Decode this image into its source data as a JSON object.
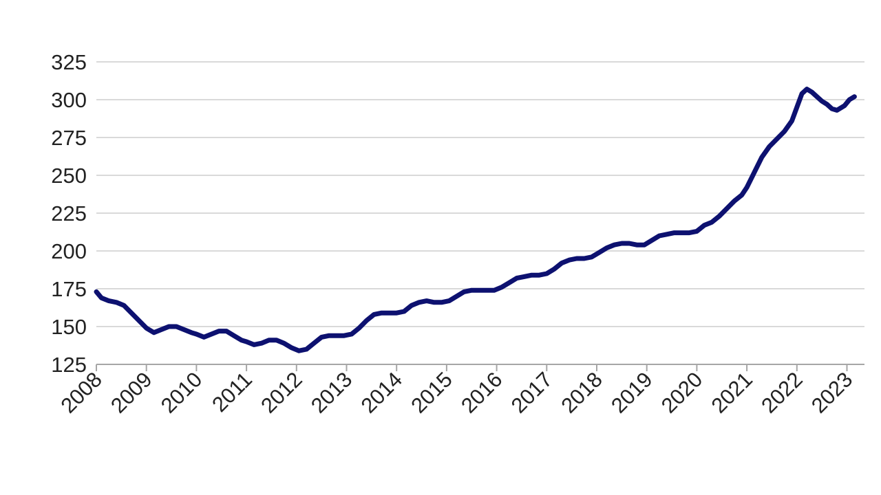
{
  "chart_data": {
    "type": "line",
    "title": "",
    "xlabel": "",
    "ylabel": "",
    "ylim": [
      125,
      325
    ],
    "yticks": [
      125,
      150,
      175,
      200,
      225,
      250,
      275,
      300,
      325
    ],
    "xlim": [
      2008,
      2023.33
    ],
    "xticks": [
      "2008",
      "2009",
      "2010",
      "2011",
      "2012",
      "2013",
      "2014",
      "2015",
      "2016",
      "2017",
      "2018",
      "2019",
      "2020",
      "2021",
      "2022",
      "2023"
    ],
    "grid": "horizontal",
    "legend": "none",
    "colors": {
      "line": "#0d1170",
      "grid": "#d9d9d9",
      "axis": "#a6a6a6"
    },
    "series": [
      {
        "values": [
          [
            2008.0,
            173
          ],
          [
            2008.1,
            169
          ],
          [
            2008.25,
            167
          ],
          [
            2008.4,
            166
          ],
          [
            2008.55,
            164
          ],
          [
            2008.7,
            159
          ],
          [
            2008.85,
            154
          ],
          [
            2009.0,
            149
          ],
          [
            2009.15,
            146
          ],
          [
            2009.3,
            148
          ],
          [
            2009.45,
            150
          ],
          [
            2009.6,
            150
          ],
          [
            2009.75,
            148
          ],
          [
            2009.9,
            146
          ],
          [
            2010.0,
            145
          ],
          [
            2010.15,
            143
          ],
          [
            2010.3,
            145
          ],
          [
            2010.45,
            147
          ],
          [
            2010.6,
            147
          ],
          [
            2010.75,
            144
          ],
          [
            2010.9,
            141
          ],
          [
            2011.0,
            140
          ],
          [
            2011.15,
            138
          ],
          [
            2011.3,
            139
          ],
          [
            2011.45,
            141
          ],
          [
            2011.6,
            141
          ],
          [
            2011.75,
            139
          ],
          [
            2011.9,
            136
          ],
          [
            2012.05,
            134
          ],
          [
            2012.2,
            135
          ],
          [
            2012.35,
            139
          ],
          [
            2012.5,
            143
          ],
          [
            2012.65,
            144
          ],
          [
            2012.8,
            144
          ],
          [
            2012.95,
            144
          ],
          [
            2013.1,
            145
          ],
          [
            2013.25,
            149
          ],
          [
            2013.4,
            154
          ],
          [
            2013.55,
            158
          ],
          [
            2013.7,
            159
          ],
          [
            2013.85,
            159
          ],
          [
            2014.0,
            159
          ],
          [
            2014.15,
            160
          ],
          [
            2014.3,
            164
          ],
          [
            2014.45,
            166
          ],
          [
            2014.6,
            167
          ],
          [
            2014.75,
            166
          ],
          [
            2014.9,
            166
          ],
          [
            2015.05,
            167
          ],
          [
            2015.2,
            170
          ],
          [
            2015.35,
            173
          ],
          [
            2015.5,
            174
          ],
          [
            2015.65,
            174
          ],
          [
            2015.8,
            174
          ],
          [
            2015.95,
            174
          ],
          [
            2016.1,
            176
          ],
          [
            2016.25,
            179
          ],
          [
            2016.4,
            182
          ],
          [
            2016.55,
            183
          ],
          [
            2016.7,
            184
          ],
          [
            2016.85,
            184
          ],
          [
            2017.0,
            185
          ],
          [
            2017.15,
            188
          ],
          [
            2017.3,
            192
          ],
          [
            2017.45,
            194
          ],
          [
            2017.6,
            195
          ],
          [
            2017.75,
            195
          ],
          [
            2017.9,
            196
          ],
          [
            2018.05,
            199
          ],
          [
            2018.2,
            202
          ],
          [
            2018.35,
            204
          ],
          [
            2018.5,
            205
          ],
          [
            2018.65,
            205
          ],
          [
            2018.8,
            204
          ],
          [
            2018.95,
            204
          ],
          [
            2019.1,
            207
          ],
          [
            2019.25,
            210
          ],
          [
            2019.4,
            211
          ],
          [
            2019.55,
            212
          ],
          [
            2019.7,
            212
          ],
          [
            2019.85,
            212
          ],
          [
            2020.0,
            213
          ],
          [
            2020.15,
            217
          ],
          [
            2020.3,
            219
          ],
          [
            2020.45,
            223
          ],
          [
            2020.6,
            228
          ],
          [
            2020.75,
            233
          ],
          [
            2020.9,
            237
          ],
          [
            2021.0,
            242
          ],
          [
            2021.15,
            252
          ],
          [
            2021.3,
            262
          ],
          [
            2021.45,
            269
          ],
          [
            2021.6,
            274
          ],
          [
            2021.75,
            279
          ],
          [
            2021.9,
            286
          ],
          [
            2022.0,
            295
          ],
          [
            2022.1,
            304
          ],
          [
            2022.2,
            307
          ],
          [
            2022.3,
            305
          ],
          [
            2022.4,
            302
          ],
          [
            2022.5,
            299
          ],
          [
            2022.6,
            297
          ],
          [
            2022.7,
            294
          ],
          [
            2022.8,
            293
          ],
          [
            2022.95,
            296
          ],
          [
            2023.05,
            300
          ],
          [
            2023.15,
            302
          ]
        ]
      }
    ]
  }
}
